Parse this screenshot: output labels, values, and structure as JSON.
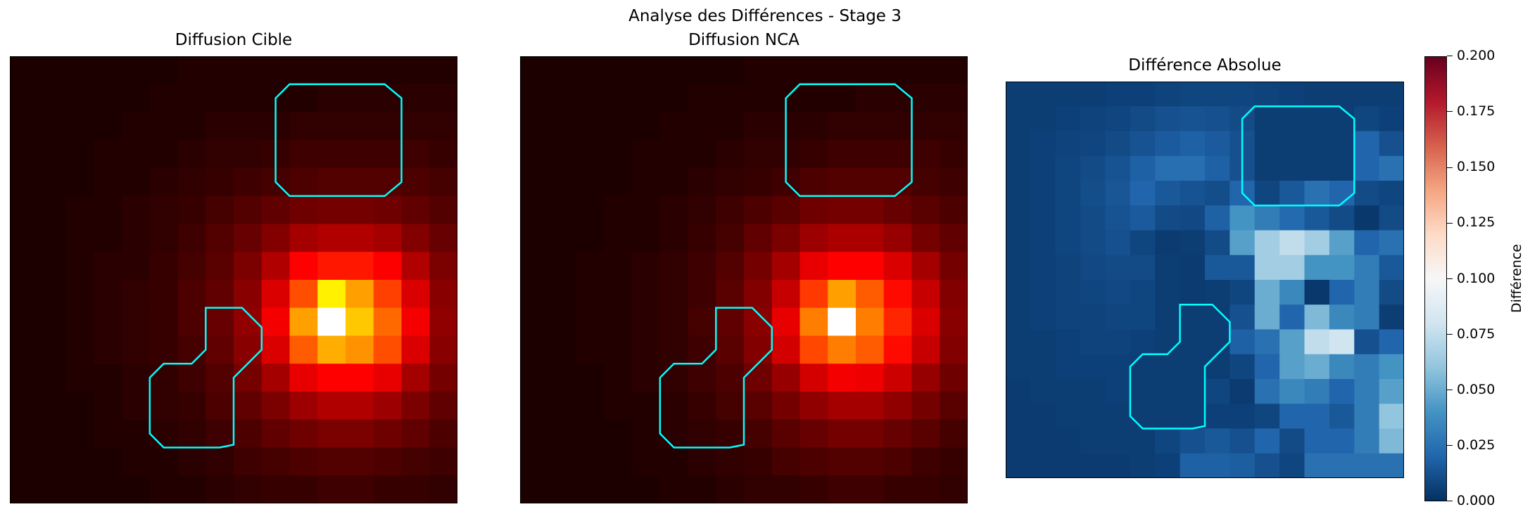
{
  "suptitle": "Analyse des Différences - Stage 3",
  "panels": [
    {
      "title": "Diffusion Cible"
    },
    {
      "title": "Diffusion NCA"
    },
    {
      "title": "Différence Absolue"
    }
  ],
  "colorbar": {
    "label": "Différence",
    "ticks": [
      "0.000",
      "0.025",
      "0.050",
      "0.075",
      "0.100",
      "0.125",
      "0.150",
      "0.175",
      "0.200"
    ]
  },
  "colors": {
    "obstacle_outline": "#00ffff",
    "frame": "#000000"
  },
  "chart_data": [
    {
      "type": "heatmap",
      "title": "Diffusion Cible",
      "colormap": "hot",
      "grid_size": [
        16,
        16
      ],
      "vmin": 0,
      "vmax": 1,
      "values": [
        [
          0.0,
          0.0,
          0.0,
          0.0,
          0.0,
          0.0,
          0.01,
          0.01,
          0.01,
          0.01,
          0.01,
          0.01,
          0.01,
          0.01,
          0.01,
          0.01
        ],
        [
          0.0,
          0.0,
          0.0,
          0.0,
          0.0,
          0.01,
          0.01,
          0.01,
          0.01,
          0.01,
          0.01,
          0.02,
          0.02,
          0.02,
          0.02,
          0.02
        ],
        [
          0.0,
          0.0,
          0.0,
          0.0,
          0.01,
          0.01,
          0.01,
          0.02,
          0.02,
          0.02,
          0.03,
          0.03,
          0.03,
          0.03,
          0.03,
          0.03
        ],
        [
          0.0,
          0.0,
          0.0,
          0.01,
          0.01,
          0.01,
          0.02,
          0.03,
          0.03,
          0.04,
          0.05,
          0.05,
          0.05,
          0.05,
          0.05,
          0.04
        ],
        [
          0.0,
          0.0,
          0.0,
          0.01,
          0.01,
          0.02,
          0.03,
          0.04,
          0.05,
          0.06,
          0.07,
          0.08,
          0.08,
          0.08,
          0.07,
          0.06
        ],
        [
          0.0,
          0.0,
          0.01,
          0.01,
          0.02,
          0.03,
          0.04,
          0.06,
          0.08,
          0.1,
          0.12,
          0.13,
          0.13,
          0.12,
          0.1,
          0.08
        ],
        [
          0.0,
          0.0,
          0.01,
          0.01,
          0.02,
          0.03,
          0.05,
          0.08,
          0.11,
          0.15,
          0.2,
          0.22,
          0.22,
          0.2,
          0.15,
          0.11
        ],
        [
          0.0,
          0.0,
          0.01,
          0.02,
          0.02,
          0.04,
          0.06,
          0.09,
          0.14,
          0.22,
          0.34,
          0.4,
          0.4,
          0.33,
          0.22,
          0.14
        ],
        [
          0.0,
          0.0,
          0.01,
          0.02,
          0.03,
          0.04,
          0.07,
          0.1,
          0.16,
          0.28,
          0.48,
          0.72,
          0.6,
          0.46,
          0.28,
          0.16
        ],
        [
          0.0,
          0.0,
          0.01,
          0.02,
          0.03,
          0.04,
          0.07,
          0.11,
          0.17,
          0.32,
          0.6,
          1.0,
          0.66,
          0.52,
          0.32,
          0.17
        ],
        [
          0.0,
          0.0,
          0.01,
          0.02,
          0.03,
          0.04,
          0.06,
          0.1,
          0.16,
          0.28,
          0.5,
          0.62,
          0.58,
          0.48,
          0.28,
          0.16
        ],
        [
          0.0,
          0.0,
          0.01,
          0.01,
          0.02,
          0.03,
          0.05,
          0.08,
          0.13,
          0.2,
          0.3,
          0.36,
          0.36,
          0.3,
          0.2,
          0.13
        ],
        [
          0.0,
          0.0,
          0.0,
          0.01,
          0.02,
          0.03,
          0.04,
          0.07,
          0.1,
          0.14,
          0.19,
          0.22,
          0.22,
          0.19,
          0.14,
          0.1
        ],
        [
          0.0,
          0.0,
          0.0,
          0.01,
          0.01,
          0.02,
          0.03,
          0.05,
          0.07,
          0.1,
          0.12,
          0.14,
          0.14,
          0.12,
          0.1,
          0.07
        ],
        [
          0.0,
          0.0,
          0.0,
          0.0,
          0.01,
          0.01,
          0.02,
          0.03,
          0.05,
          0.06,
          0.07,
          0.08,
          0.08,
          0.07,
          0.06,
          0.05
        ],
        [
          0.0,
          0.0,
          0.0,
          0.0,
          0.0,
          0.01,
          0.01,
          0.02,
          0.03,
          0.04,
          0.04,
          0.05,
          0.05,
          0.04,
          0.04,
          0.03
        ]
      ],
      "obstacles": [
        [
          [
            10.0,
            1.0
          ],
          [
            13.4,
            1.0
          ],
          [
            14.0,
            1.5
          ],
          [
            14.0,
            4.5
          ],
          [
            13.4,
            5.0
          ],
          [
            10.0,
            5.0
          ],
          [
            9.5,
            4.5
          ],
          [
            9.5,
            1.5
          ]
        ],
        [
          [
            7.0,
            9.0
          ],
          [
            8.3,
            9.0
          ],
          [
            9.0,
            9.7
          ],
          [
            9.0,
            10.5
          ],
          [
            8.0,
            11.5
          ],
          [
            8.0,
            13.9
          ],
          [
            7.5,
            14.0
          ],
          [
            5.5,
            14.0
          ],
          [
            5.0,
            13.5
          ],
          [
            5.0,
            11.5
          ],
          [
            5.5,
            11.0
          ],
          [
            6.5,
            11.0
          ],
          [
            7.0,
            10.5
          ]
        ]
      ]
    },
    {
      "type": "heatmap",
      "title": "Diffusion NCA",
      "colormap": "hot",
      "grid_size": [
        16,
        16
      ],
      "vmin": 0,
      "vmax": 1,
      "values": [
        [
          0.0,
          0.0,
          0.0,
          0.0,
          0.0,
          0.0,
          0.0,
          0.0,
          0.01,
          0.01,
          0.01,
          0.01,
          0.01,
          0.01,
          0.01,
          0.01
        ],
        [
          0.0,
          0.0,
          0.0,
          0.0,
          0.0,
          0.0,
          0.01,
          0.01,
          0.01,
          0.01,
          0.01,
          0.01,
          0.02,
          0.02,
          0.02,
          0.02
        ],
        [
          0.0,
          0.0,
          0.0,
          0.0,
          0.0,
          0.01,
          0.01,
          0.01,
          0.02,
          0.02,
          0.02,
          0.03,
          0.03,
          0.03,
          0.03,
          0.03
        ],
        [
          0.0,
          0.0,
          0.0,
          0.0,
          0.01,
          0.01,
          0.01,
          0.02,
          0.03,
          0.03,
          0.04,
          0.05,
          0.05,
          0.05,
          0.05,
          0.04
        ],
        [
          0.0,
          0.0,
          0.0,
          0.0,
          0.01,
          0.01,
          0.02,
          0.03,
          0.04,
          0.05,
          0.07,
          0.08,
          0.08,
          0.08,
          0.06,
          0.05
        ],
        [
          0.0,
          0.0,
          0.0,
          0.01,
          0.01,
          0.02,
          0.03,
          0.05,
          0.07,
          0.09,
          0.12,
          0.13,
          0.13,
          0.11,
          0.09,
          0.07
        ],
        [
          0.0,
          0.0,
          0.0,
          0.01,
          0.01,
          0.02,
          0.04,
          0.06,
          0.1,
          0.14,
          0.19,
          0.21,
          0.21,
          0.18,
          0.13,
          0.1
        ],
        [
          0.0,
          0.0,
          0.01,
          0.01,
          0.02,
          0.03,
          0.05,
          0.08,
          0.13,
          0.2,
          0.3,
          0.36,
          0.35,
          0.28,
          0.2,
          0.13
        ],
        [
          0.0,
          0.0,
          0.01,
          0.01,
          0.02,
          0.03,
          0.05,
          0.09,
          0.15,
          0.25,
          0.45,
          0.6,
          0.5,
          0.38,
          0.25,
          0.15
        ],
        [
          0.0,
          0.0,
          0.01,
          0.01,
          0.02,
          0.03,
          0.06,
          0.1,
          0.16,
          0.3,
          0.55,
          1.0,
          0.55,
          0.42,
          0.28,
          0.16
        ],
        [
          0.0,
          0.0,
          0.01,
          0.01,
          0.02,
          0.03,
          0.05,
          0.09,
          0.15,
          0.27,
          0.47,
          0.55,
          0.5,
          0.38,
          0.25,
          0.15
        ],
        [
          0.0,
          0.0,
          0.0,
          0.01,
          0.02,
          0.03,
          0.05,
          0.07,
          0.12,
          0.18,
          0.27,
          0.32,
          0.31,
          0.26,
          0.18,
          0.12
        ],
        [
          0.0,
          0.0,
          0.0,
          0.01,
          0.01,
          0.02,
          0.04,
          0.06,
          0.09,
          0.13,
          0.17,
          0.2,
          0.2,
          0.17,
          0.13,
          0.09
        ],
        [
          0.0,
          0.0,
          0.0,
          0.0,
          0.01,
          0.02,
          0.03,
          0.04,
          0.06,
          0.09,
          0.11,
          0.13,
          0.13,
          0.11,
          0.09,
          0.06
        ],
        [
          0.0,
          0.0,
          0.0,
          0.0,
          0.01,
          0.01,
          0.02,
          0.03,
          0.04,
          0.06,
          0.07,
          0.08,
          0.08,
          0.07,
          0.05,
          0.04
        ],
        [
          0.0,
          0.0,
          0.0,
          0.0,
          0.0,
          0.01,
          0.01,
          0.02,
          0.03,
          0.03,
          0.04,
          0.05,
          0.05,
          0.04,
          0.04,
          0.03
        ]
      ],
      "obstacles": [
        [
          [
            10.0,
            1.0
          ],
          [
            13.4,
            1.0
          ],
          [
            14.0,
            1.5
          ],
          [
            14.0,
            4.5
          ],
          [
            13.4,
            5.0
          ],
          [
            10.0,
            5.0
          ],
          [
            9.5,
            4.5
          ],
          [
            9.5,
            1.5
          ]
        ],
        [
          [
            7.0,
            9.0
          ],
          [
            8.3,
            9.0
          ],
          [
            9.0,
            9.7
          ],
          [
            9.0,
            10.5
          ],
          [
            8.0,
            11.5
          ],
          [
            8.0,
            13.9
          ],
          [
            7.5,
            14.0
          ],
          [
            5.5,
            14.0
          ],
          [
            5.0,
            13.5
          ],
          [
            5.0,
            11.5
          ],
          [
            5.5,
            11.0
          ],
          [
            6.5,
            11.0
          ],
          [
            7.0,
            10.5
          ]
        ]
      ]
    },
    {
      "type": "heatmap",
      "title": "Différence Absolue",
      "colormap": "RdBu_r",
      "grid_size": [
        16,
        16
      ],
      "vmin": 0,
      "vmax": 0.2,
      "colorbar_label": "Différence",
      "values": [
        [
          0.005,
          0.005,
          0.005,
          0.005,
          0.006,
          0.006,
          0.007,
          0.008,
          0.008,
          0.008,
          0.007,
          0.006,
          0.005,
          0.005,
          0.005,
          0.005
        ],
        [
          0.005,
          0.005,
          0.006,
          0.007,
          0.008,
          0.01,
          0.012,
          0.013,
          0.012,
          0.01,
          0.005,
          0.005,
          0.005,
          0.005,
          0.008,
          0.006
        ],
        [
          0.005,
          0.006,
          0.007,
          0.008,
          0.01,
          0.013,
          0.016,
          0.018,
          0.016,
          0.012,
          0.005,
          0.005,
          0.005,
          0.005,
          0.02,
          0.012
        ],
        [
          0.005,
          0.006,
          0.008,
          0.01,
          0.013,
          0.018,
          0.024,
          0.024,
          0.018,
          0.012,
          0.005,
          0.005,
          0.005,
          0.005,
          0.02,
          0.025
        ],
        [
          0.005,
          0.006,
          0.008,
          0.011,
          0.014,
          0.02,
          0.015,
          0.013,
          0.011,
          0.02,
          0.008,
          0.015,
          0.025,
          0.02,
          0.01,
          0.008
        ],
        [
          0.005,
          0.006,
          0.008,
          0.01,
          0.013,
          0.016,
          0.01,
          0.009,
          0.018,
          0.04,
          0.03,
          0.022,
          0.015,
          0.01,
          0.003,
          0.01
        ],
        [
          0.005,
          0.006,
          0.008,
          0.01,
          0.012,
          0.008,
          0.004,
          0.005,
          0.01,
          0.045,
          0.065,
          0.075,
          0.065,
          0.045,
          0.02,
          0.025
        ],
        [
          0.005,
          0.006,
          0.007,
          0.009,
          0.01,
          0.01,
          0.005,
          0.004,
          0.015,
          0.015,
          0.065,
          0.065,
          0.04,
          0.04,
          0.03,
          0.015
        ],
        [
          0.005,
          0.006,
          0.007,
          0.008,
          0.009,
          0.008,
          0.005,
          0.004,
          0.005,
          0.008,
          0.05,
          0.035,
          0.003,
          0.02,
          0.03,
          0.01
        ],
        [
          0.005,
          0.006,
          0.007,
          0.007,
          0.008,
          0.008,
          0.005,
          0.005,
          0.005,
          0.012,
          0.05,
          0.02,
          0.055,
          0.035,
          0.03,
          0.005
        ],
        [
          0.005,
          0.005,
          0.006,
          0.007,
          0.007,
          0.006,
          0.005,
          0.005,
          0.005,
          0.018,
          0.025,
          0.045,
          0.075,
          0.08,
          0.012,
          0.02
        ],
        [
          0.005,
          0.005,
          0.006,
          0.006,
          0.006,
          0.005,
          0.005,
          0.005,
          0.005,
          0.008,
          0.02,
          0.045,
          0.05,
          0.035,
          0.03,
          0.04
        ],
        [
          0.004,
          0.005,
          0.005,
          0.005,
          0.006,
          0.005,
          0.005,
          0.005,
          0.008,
          0.004,
          0.025,
          0.035,
          0.03,
          0.02,
          0.03,
          0.045
        ],
        [
          0.004,
          0.004,
          0.005,
          0.005,
          0.005,
          0.005,
          0.005,
          0.005,
          0.006,
          0.006,
          0.008,
          0.02,
          0.02,
          0.015,
          0.03,
          0.06
        ],
        [
          0.004,
          0.004,
          0.004,
          0.005,
          0.005,
          0.005,
          0.008,
          0.012,
          0.015,
          0.012,
          0.02,
          0.01,
          0.02,
          0.02,
          0.03,
          0.055
        ],
        [
          0.004,
          0.004,
          0.004,
          0.004,
          0.004,
          0.005,
          0.006,
          0.018,
          0.018,
          0.017,
          0.012,
          0.008,
          0.025,
          0.025,
          0.025,
          0.025
        ]
      ],
      "obstacles": [
        [
          [
            10.0,
            1.0
          ],
          [
            13.4,
            1.0
          ],
          [
            14.0,
            1.5
          ],
          [
            14.0,
            4.5
          ],
          [
            13.4,
            5.0
          ],
          [
            10.0,
            5.0
          ],
          [
            9.5,
            4.5
          ],
          [
            9.5,
            1.5
          ]
        ],
        [
          [
            7.0,
            9.0
          ],
          [
            8.3,
            9.0
          ],
          [
            9.0,
            9.7
          ],
          [
            9.0,
            10.5
          ],
          [
            8.0,
            11.5
          ],
          [
            8.0,
            13.9
          ],
          [
            7.5,
            14.0
          ],
          [
            5.5,
            14.0
          ],
          [
            5.0,
            13.5
          ],
          [
            5.0,
            11.5
          ],
          [
            5.5,
            11.0
          ],
          [
            6.5,
            11.0
          ],
          [
            7.0,
            10.5
          ]
        ]
      ]
    }
  ]
}
